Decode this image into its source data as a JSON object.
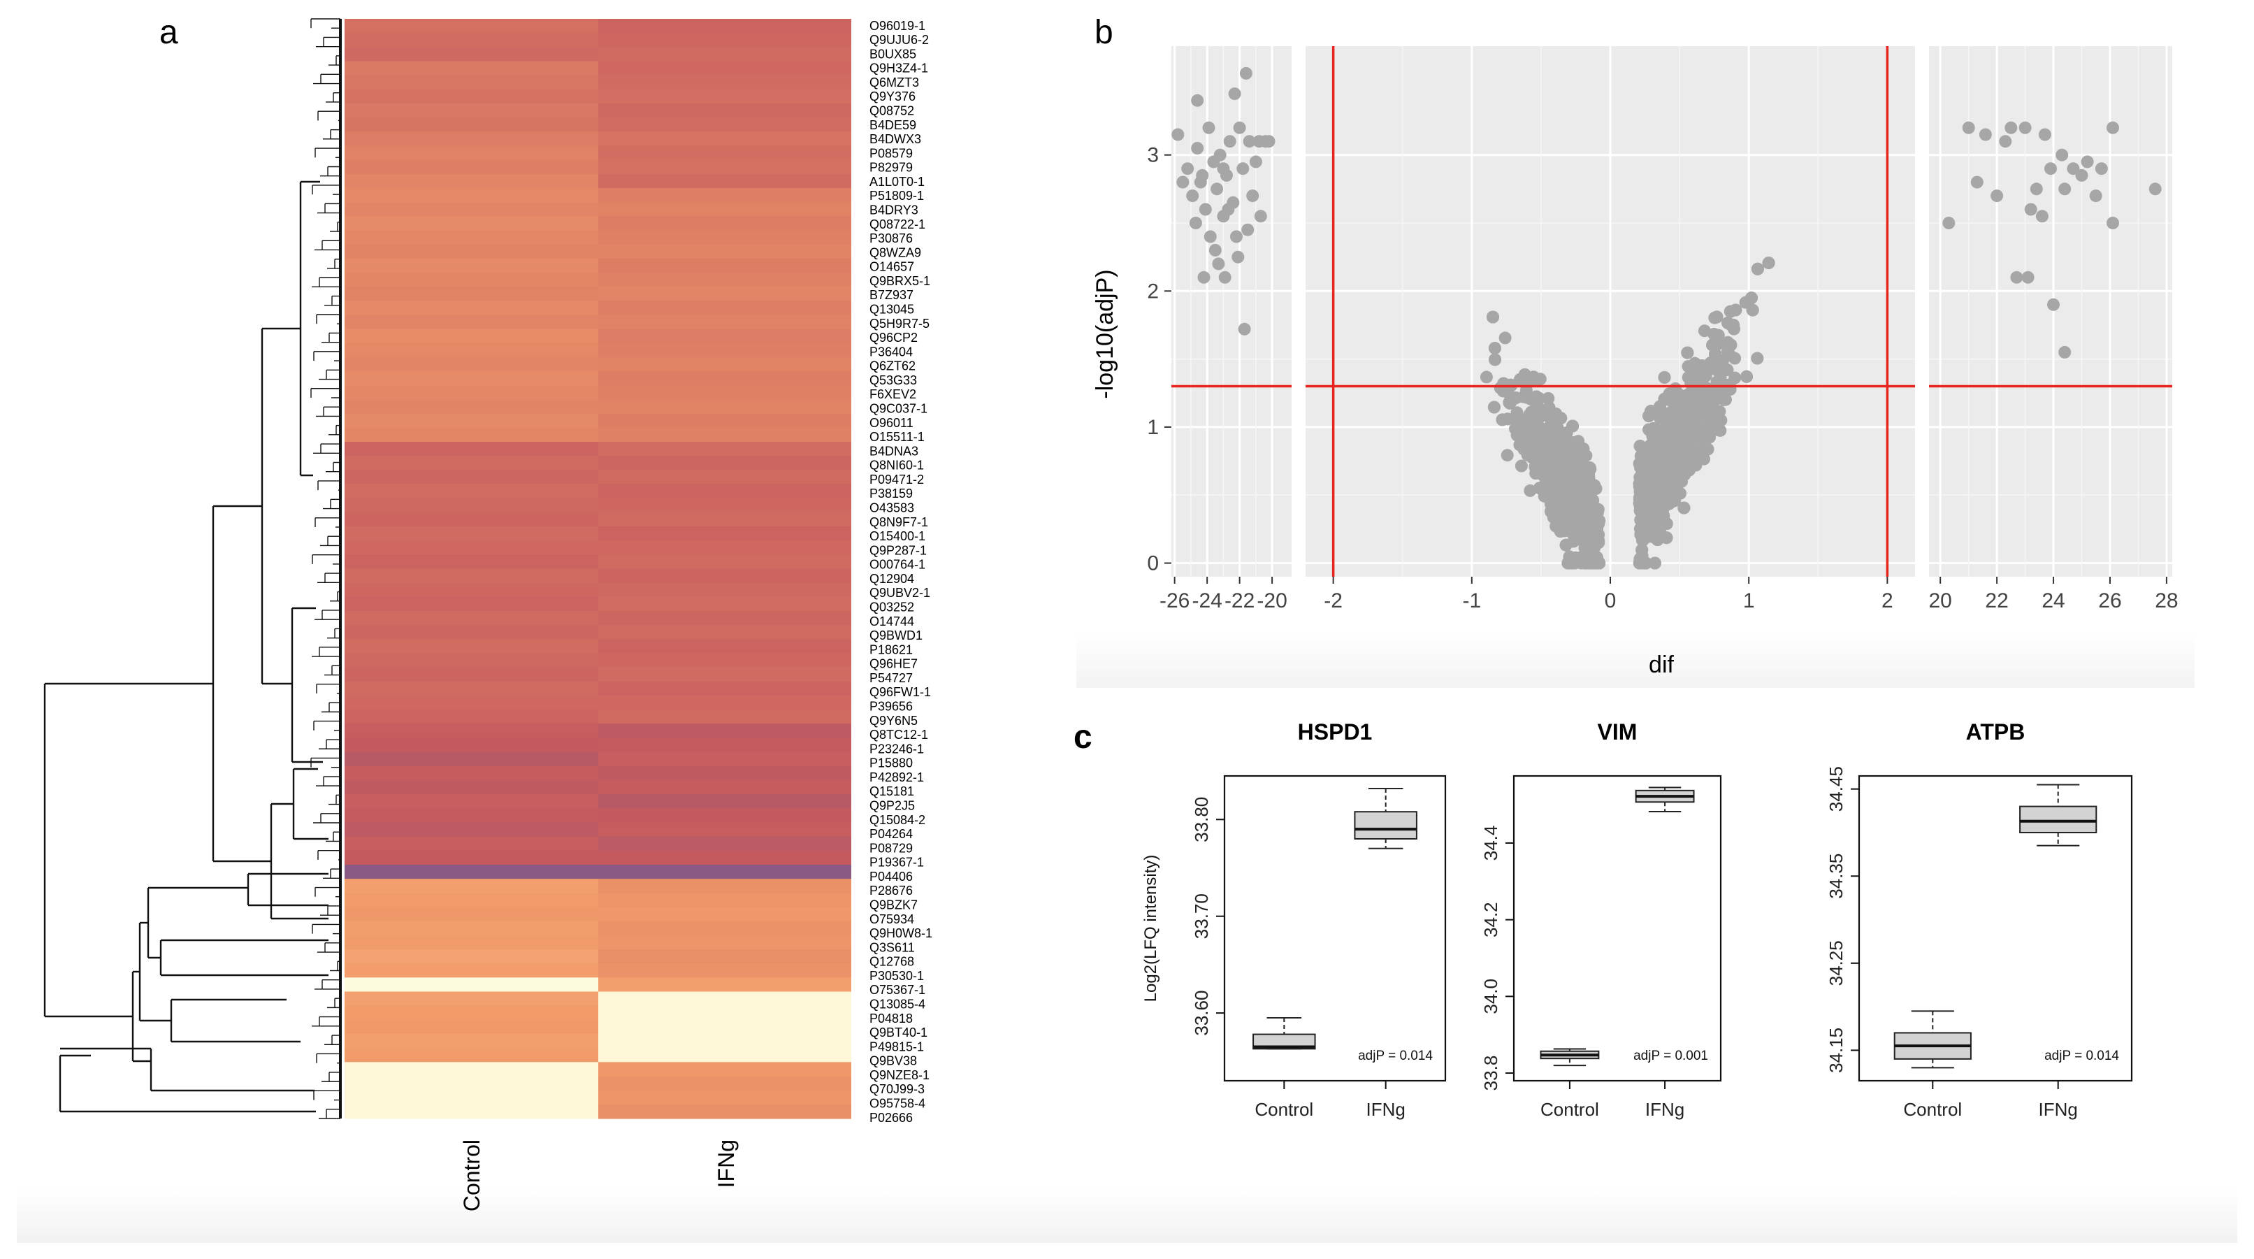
{
  "panel_labels": {
    "a": "a",
    "b": "b",
    "c": "c"
  },
  "colors": {
    "bg_panel": "#ebebeb",
    "grid": "#ffffff",
    "point": "#a6a6a6",
    "threshold": "#e8241f",
    "heat_low": "#fdfbdd",
    "heat_mid": "#f29c6a",
    "heat_high": "#c45a5e",
    "heat_max": "#8a5a82",
    "box_fill": "#d3d3d3"
  },
  "chart_data": [
    {
      "id": "heatmap",
      "type": "heatmap",
      "columns": [
        "Control",
        "IFNg"
      ],
      "row_labels": [
        "O96019-1",
        "Q9UJU6-2",
        "B0UX85",
        "Q9H3Z4-1",
        "Q6MZT3",
        "Q9Y376",
        "Q08752",
        "B4DE59",
        "B4DWX3",
        "P08579",
        "P82979",
        "A1L0T0-1",
        "P51809-1",
        "B4DRY3",
        "Q08722-1",
        "P30876",
        "Q8WZA9",
        "O14657",
        "Q9BRX5-1",
        "B7Z937",
        "Q13045",
        "Q5H9R7-5",
        "Q96CP2",
        "P36404",
        "Q6ZT62",
        "Q53G33",
        "F6XEV2",
        "Q9C037-1",
        "O96011",
        "O15511-1",
        "B4DNA3",
        "Q8NI60-1",
        "P09471-2",
        "P38159",
        "O43583",
        "Q8N9F7-1",
        "O15400-1",
        "Q9P287-1",
        "O00764-1",
        "Q12904",
        "Q9UBV2-1",
        "Q03252",
        "O14744",
        "Q9BWD1",
        "P18621",
        "Q96HE7",
        "P54727",
        "Q96FW1-1",
        "P39656",
        "Q9Y6N5",
        "Q8TC12-1",
        "P23246-1",
        "P15880",
        "P42892-1",
        "Q15181",
        "Q9P2J5",
        "Q15084-2",
        "P04264",
        "P08729",
        "P19367-1",
        "P04406",
        "P28676",
        "Q9BZK7",
        "O75934",
        "Q9H0W8-1",
        "Q3S611",
        "Q12768",
        "P30530-1",
        "O75367-1",
        "Q13085-4",
        "P04818",
        "Q9BT40-1",
        "P49815-1",
        "Q9BV38",
        "Q9NZE8-1",
        "Q70J99-3",
        "O95758-4",
        "P02666"
      ],
      "blocks": [
        {
          "control": 0.78,
          "ifng": 0.8,
          "rows": 3
        },
        {
          "control": 0.72,
          "ifng": 0.78,
          "rows": 5
        },
        {
          "control": 0.66,
          "ifng": 0.76,
          "rows": 4
        },
        {
          "control": 0.62,
          "ifng": 0.66,
          "rows": 18
        },
        {
          "control": 0.8,
          "ifng": 0.8,
          "rows": 20
        },
        {
          "control": 0.88,
          "ifng": 0.88,
          "rows": 10
        },
        {
          "control": 1.0,
          "ifng": 1.0,
          "rows": 1
        },
        {
          "control": 0.5,
          "ifng": 0.55,
          "rows": 7
        },
        {
          "control": 0.0,
          "ifng": 0.5,
          "rows": 1
        },
        {
          "control": 0.5,
          "ifng": 0.02,
          "rows": 5
        },
        {
          "control": 0.02,
          "ifng": 0.55,
          "rows": 4
        }
      ]
    },
    {
      "id": "volcano",
      "type": "scatter",
      "xlabel": "dif",
      "ylabel": "-log10(adjP)",
      "x_ticks_left": [
        "-26",
        "-24",
        "-22",
        "-20"
      ],
      "x_ticks_mid": [
        "-2",
        "-1",
        "0",
        "1",
        "2"
      ],
      "x_ticks_right": [
        "20",
        "22",
        "24",
        "26",
        "28"
      ],
      "y_ticks": [
        "0",
        "1",
        "2",
        "3"
      ],
      "xlim_left": [
        -26.2,
        -18.8
      ],
      "xlim_mid": [
        -2.2,
        2.2
      ],
      "xlim_right": [
        19.6,
        28.2
      ],
      "ylim": [
        -0.1,
        3.8
      ],
      "thresholds": {
        "y": 1.3,
        "x": [
          -2,
          2
        ]
      },
      "n_points_mid": 2600,
      "left_points": [
        [
          -25.8,
          3.15
        ],
        [
          -25.2,
          2.9
        ],
        [
          -24.9,
          2.7
        ],
        [
          -24.6,
          3.05
        ],
        [
          -24.3,
          2.85
        ],
        [
          -24.1,
          2.6
        ],
        [
          -23.9,
          3.2
        ],
        [
          -23.6,
          2.95
        ],
        [
          -23.4,
          2.75
        ],
        [
          -23.2,
          3.0
        ],
        [
          -23.0,
          2.55
        ],
        [
          -22.8,
          2.85
        ],
        [
          -22.6,
          3.1
        ],
        [
          -22.4,
          2.65
        ],
        [
          -22.2,
          2.4
        ],
        [
          -22.0,
          3.2
        ],
        [
          -21.8,
          2.9
        ],
        [
          -21.6,
          3.6
        ],
        [
          -21.4,
          3.1
        ],
        [
          -21.2,
          2.7
        ],
        [
          -21.0,
          2.95
        ],
        [
          -20.8,
          3.1
        ],
        [
          -20.4,
          3.1
        ],
        [
          -20.2,
          3.1
        ],
        [
          -24.6,
          3.4
        ],
        [
          -22.3,
          3.45
        ],
        [
          -23.5,
          2.3
        ],
        [
          -24.7,
          2.5
        ],
        [
          -21.7,
          1.72
        ],
        [
          -23.8,
          2.4
        ],
        [
          -24.2,
          2.1
        ],
        [
          -22.9,
          2.1
        ],
        [
          -21.5,
          2.45
        ],
        [
          -20.7,
          2.55
        ],
        [
          -25.5,
          2.8
        ],
        [
          -23.3,
          2.2
        ],
        [
          -22.1,
          2.25
        ],
        [
          -24.4,
          2.8
        ],
        [
          -23.0,
          2.9
        ],
        [
          -22.7,
          2.6
        ]
      ],
      "right_points": [
        [
          21.0,
          3.2
        ],
        [
          21.6,
          3.15
        ],
        [
          22.3,
          3.1
        ],
        [
          23.0,
          3.2
        ],
        [
          23.7,
          3.15
        ],
        [
          24.3,
          3.0
        ],
        [
          24.7,
          2.9
        ],
        [
          25.2,
          2.95
        ],
        [
          25.7,
          2.9
        ],
        [
          26.1,
          3.2
        ],
        [
          27.6,
          2.75
        ],
        [
          20.3,
          2.5
        ],
        [
          21.3,
          2.8
        ],
        [
          22.0,
          2.7
        ],
        [
          23.2,
          2.6
        ],
        [
          23.9,
          2.9
        ],
        [
          24.4,
          2.75
        ],
        [
          25.0,
          2.85
        ],
        [
          25.5,
          2.7
        ],
        [
          26.1,
          2.5
        ],
        [
          22.7,
          2.1
        ],
        [
          23.1,
          2.1
        ],
        [
          24.0,
          1.9
        ],
        [
          24.4,
          1.55
        ],
        [
          23.6,
          2.55
        ],
        [
          23.4,
          2.75
        ],
        [
          22.5,
          3.2
        ]
      ]
    },
    {
      "id": "box-hspd1",
      "type": "box",
      "title": "HSPD1",
      "ylabel": "Log2(LFQ intensity)",
      "categories": [
        "Control",
        "IFNg"
      ],
      "y_ticks": [
        "33.60",
        "33.70",
        "33.80"
      ],
      "ylim": [
        33.53,
        33.845
      ],
      "boxes": [
        {
          "min": 33.563,
          "q1": 33.563,
          "median": 33.565,
          "q3": 33.578,
          "max": 33.595
        },
        {
          "min": 33.77,
          "q1": 33.78,
          "median": 33.79,
          "q3": 33.808,
          "max": 33.832
        }
      ],
      "annotation": "adjP = 0.014"
    },
    {
      "id": "box-vim",
      "type": "box",
      "title": "VIM",
      "ylabel": "",
      "categories": [
        "Control",
        "IFNg"
      ],
      "y_ticks": [
        "33.8",
        "34.0",
        "34.2",
        "34.4"
      ],
      "ylim": [
        33.78,
        34.575
      ],
      "boxes": [
        {
          "min": 33.82,
          "q1": 33.838,
          "median": 33.847,
          "q3": 33.857,
          "max": 33.863
        },
        {
          "min": 34.482,
          "q1": 34.507,
          "median": 34.522,
          "q3": 34.537,
          "max": 34.545
        }
      ],
      "annotation": "adjP = 0.001"
    },
    {
      "id": "box-atpb",
      "type": "box",
      "title": "ATPB",
      "ylabel": "",
      "categories": [
        "Control",
        "IFNg"
      ],
      "y_ticks": [
        "34.15",
        "34.25",
        "34.35",
        "34.45"
      ],
      "ylim": [
        34.115,
        34.465
      ],
      "boxes": [
        {
          "min": 34.13,
          "q1": 34.14,
          "median": 34.155,
          "q3": 34.17,
          "max": 34.195
        },
        {
          "min": 34.385,
          "q1": 34.4,
          "median": 34.413,
          "q3": 34.43,
          "max": 34.455
        }
      ],
      "annotation": "adjP = 0.014"
    }
  ]
}
